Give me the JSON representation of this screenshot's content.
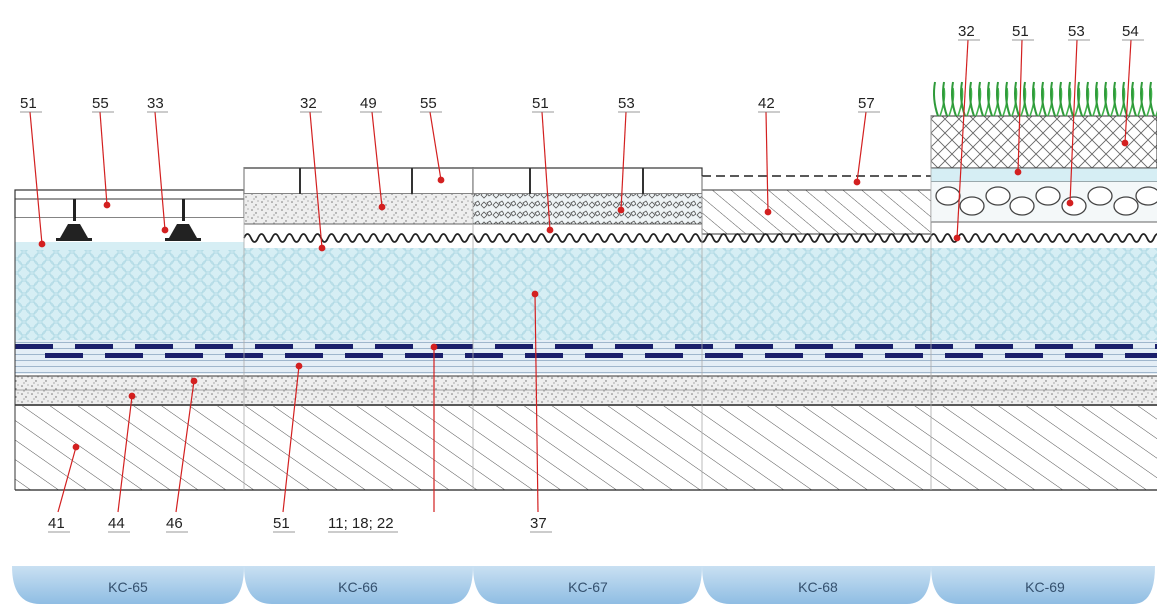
{
  "callouts": {
    "top": [
      "51",
      "55",
      "33",
      "32",
      "49",
      "55",
      "51",
      "53",
      "42",
      "57",
      "32",
      "51",
      "53",
      "54"
    ],
    "bottom": [
      "41",
      "44",
      "46",
      "51",
      "11; 18; 22",
      "37"
    ]
  },
  "sections": [
    "KC-65",
    "KC-66",
    "KC-67",
    "KC-68",
    "KC-69"
  ],
  "colors": {
    "insulation": "#d6eef4",
    "membrane": "#1b1f6b",
    "leader": "#d32020",
    "tab": "#a8cdea",
    "tab_text": "#34506e"
  }
}
